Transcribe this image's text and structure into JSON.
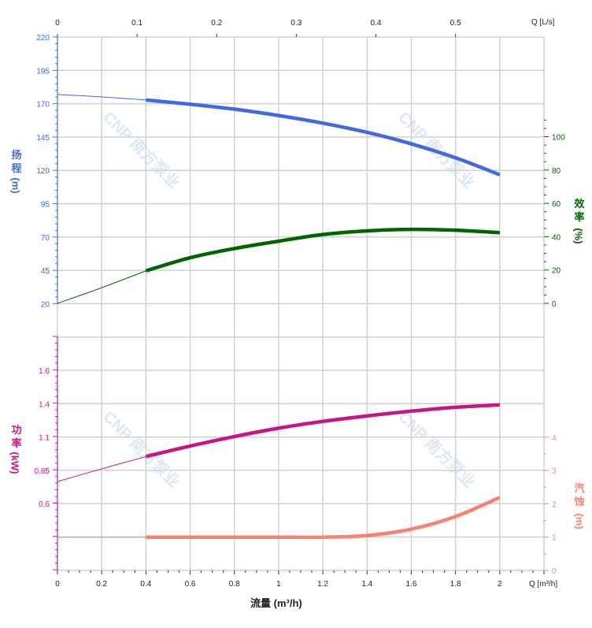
{
  "chart_data": {
    "type": "line",
    "xlabel": "流量 (m³/h)",
    "x_unit_label": "Q [m³/h]",
    "x_top_unit_label": "Q [L/s]",
    "xlim": [
      0,
      2.2
    ],
    "x_ticks": [
      "0",
      "0.2",
      "0.4",
      "0.6",
      "0.8",
      "1",
      "1.2",
      "1.4",
      "1.6",
      "1.8",
      "2"
    ],
    "x_top_ticks": [
      "0",
      "0.1",
      "0.2",
      "0.3",
      "0.4",
      "0.5"
    ],
    "grid": true,
    "watermark": "CNP 南方泵业",
    "axes": {
      "head": {
        "label": "扬程",
        "unit": "(m)",
        "color": "#4169e1",
        "ticks": [
          "220",
          "195",
          "170",
          "145",
          "120",
          "95",
          "70",
          "45",
          "20"
        ],
        "range": [
          20,
          220
        ]
      },
      "efficiency": {
        "label": "效率",
        "unit": "(%)",
        "color": "#006400",
        "ticks": [
          "100",
          "80",
          "60",
          "40",
          "20",
          "0"
        ],
        "range": [
          0,
          100
        ]
      },
      "power": {
        "label": "功率",
        "unit": "(kW)",
        "color": "#c71585",
        "ticks": [
          "1.6",
          "1.4",
          "1.1",
          "0.85",
          "0.6"
        ],
        "range": [
          0.6,
          1.6
        ]
      },
      "npsh": {
        "label": "汽蚀",
        "unit": "(m)",
        "color": "#fa8072",
        "ticks": [
          "4",
          "3",
          "2",
          "1",
          "0"
        ],
        "range": [
          0,
          4
        ]
      }
    },
    "x": [
      0,
      0.2,
      0.4,
      0.6,
      0.8,
      1.0,
      1.2,
      1.4,
      1.6,
      1.8,
      2.0
    ],
    "operating_range": [
      0.4,
      2.0
    ],
    "series": [
      {
        "axis": "head",
        "values": [
          176.9,
          175.1,
          172.8,
          169.6,
          165.9,
          161.1,
          155.4,
          148.5,
          139.9,
          129.4,
          116.7
        ]
      },
      {
        "axis": "efficiency",
        "values": [
          0,
          9.4,
          19.5,
          27.4,
          32.9,
          37.3,
          41.3,
          43.5,
          44.4,
          43.9,
          42.4
        ]
      },
      {
        "axis": "power",
        "values": [
          0.765,
          0.86,
          0.952,
          1.031,
          1.102,
          1.165,
          1.216,
          1.257,
          1.293,
          1.322,
          1.34
        ]
      },
      {
        "axis": "npsh",
        "values": [
          1.0,
          1.0,
          1.0,
          1.0,
          1.0,
          1.0,
          1.0,
          1.05,
          1.24,
          1.62,
          2.19
        ]
      }
    ]
  }
}
